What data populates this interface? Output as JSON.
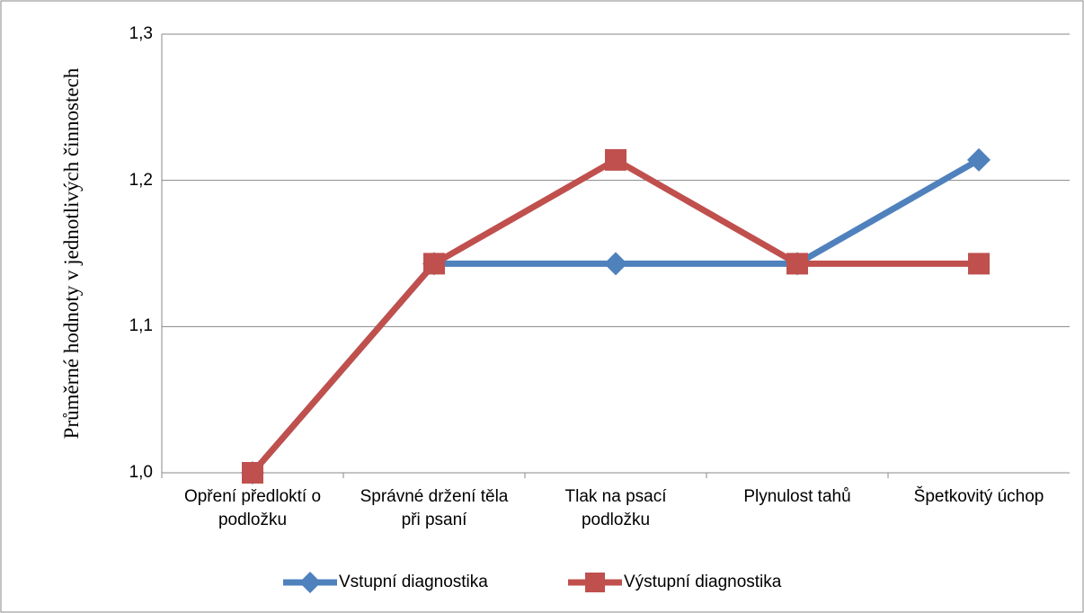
{
  "chart_data": {
    "type": "line",
    "categories": [
      "Opření předloktí o podložku",
      "Správné držení těla při psaní",
      "Tlak na psací podložku",
      "Plynulost tahů",
      "Špetkovitý úchop"
    ],
    "series": [
      {
        "name": "Vstupní diagnostika",
        "color": "#4f81bd",
        "marker": "diamond",
        "values": [
          1.0,
          1.143,
          1.143,
          1.143,
          1.214
        ]
      },
      {
        "name": "Výstupní diagnostika",
        "color": "#c0504d",
        "marker": "square",
        "values": [
          1.0,
          1.143,
          1.214,
          1.143,
          1.143
        ]
      }
    ],
    "y_label": "Průměrné hodnoty v jednotlivých činnostech",
    "ylim": [
      1.0,
      1.3
    ],
    "yticks": [
      {
        "value": 1.0,
        "label": "1,0"
      },
      {
        "value": 1.1,
        "label": "1,1"
      },
      {
        "value": 1.2,
        "label": "1,2"
      },
      {
        "value": 1.3,
        "label": "1,3"
      }
    ],
    "grid": true,
    "legend": "bottom"
  }
}
